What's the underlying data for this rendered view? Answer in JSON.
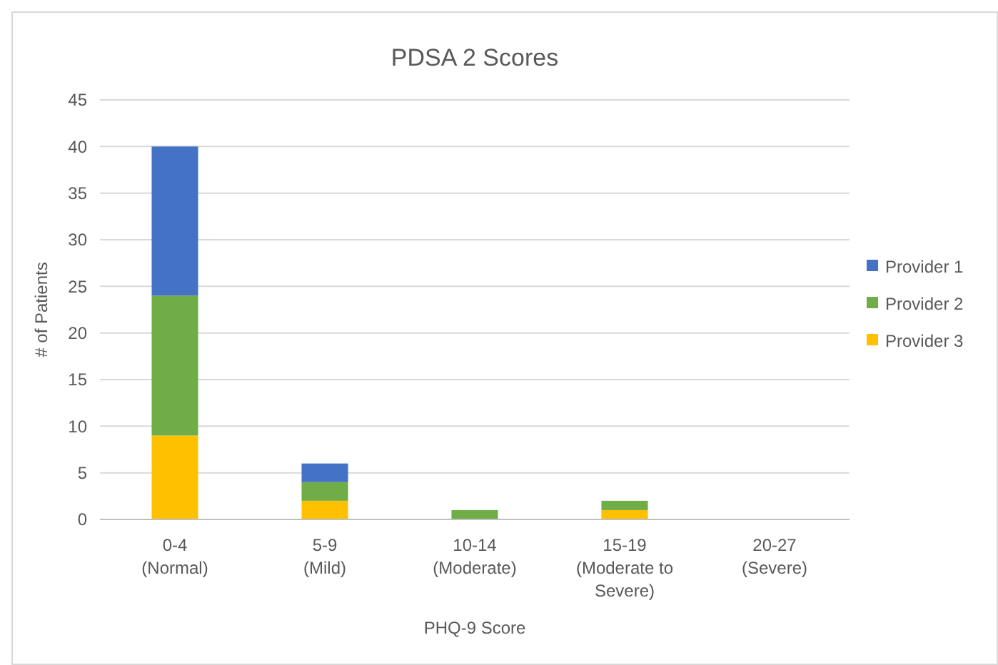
{
  "chart_data": {
    "type": "bar",
    "title": "PDSA 2 Scores",
    "xlabel": "PHQ-9 Score",
    "ylabel": "# of Patients",
    "categories": [
      "0-4\n(Normal)",
      "5-9\n(Mild)",
      "10-14\n(Moderate)",
      "15-19\n(Moderate to\nSevere)",
      "20-27\n(Severe)"
    ],
    "stacked": true,
    "series": [
      {
        "name": "Provider 3",
        "color": "#ffc000",
        "values": [
          9,
          2,
          0,
          1,
          0
        ]
      },
      {
        "name": "Provider 2",
        "color": "#70ad47",
        "values": [
          15,
          2,
          1,
          1,
          0
        ]
      },
      {
        "name": "Provider 1",
        "color": "#4472c4",
        "values": [
          16,
          2,
          0,
          0,
          0
        ]
      }
    ],
    "ylim": [
      0,
      45
    ],
    "yticks": [
      0,
      5,
      10,
      15,
      20,
      25,
      30,
      35,
      40,
      45
    ],
    "grid": "y",
    "legend": "right"
  }
}
